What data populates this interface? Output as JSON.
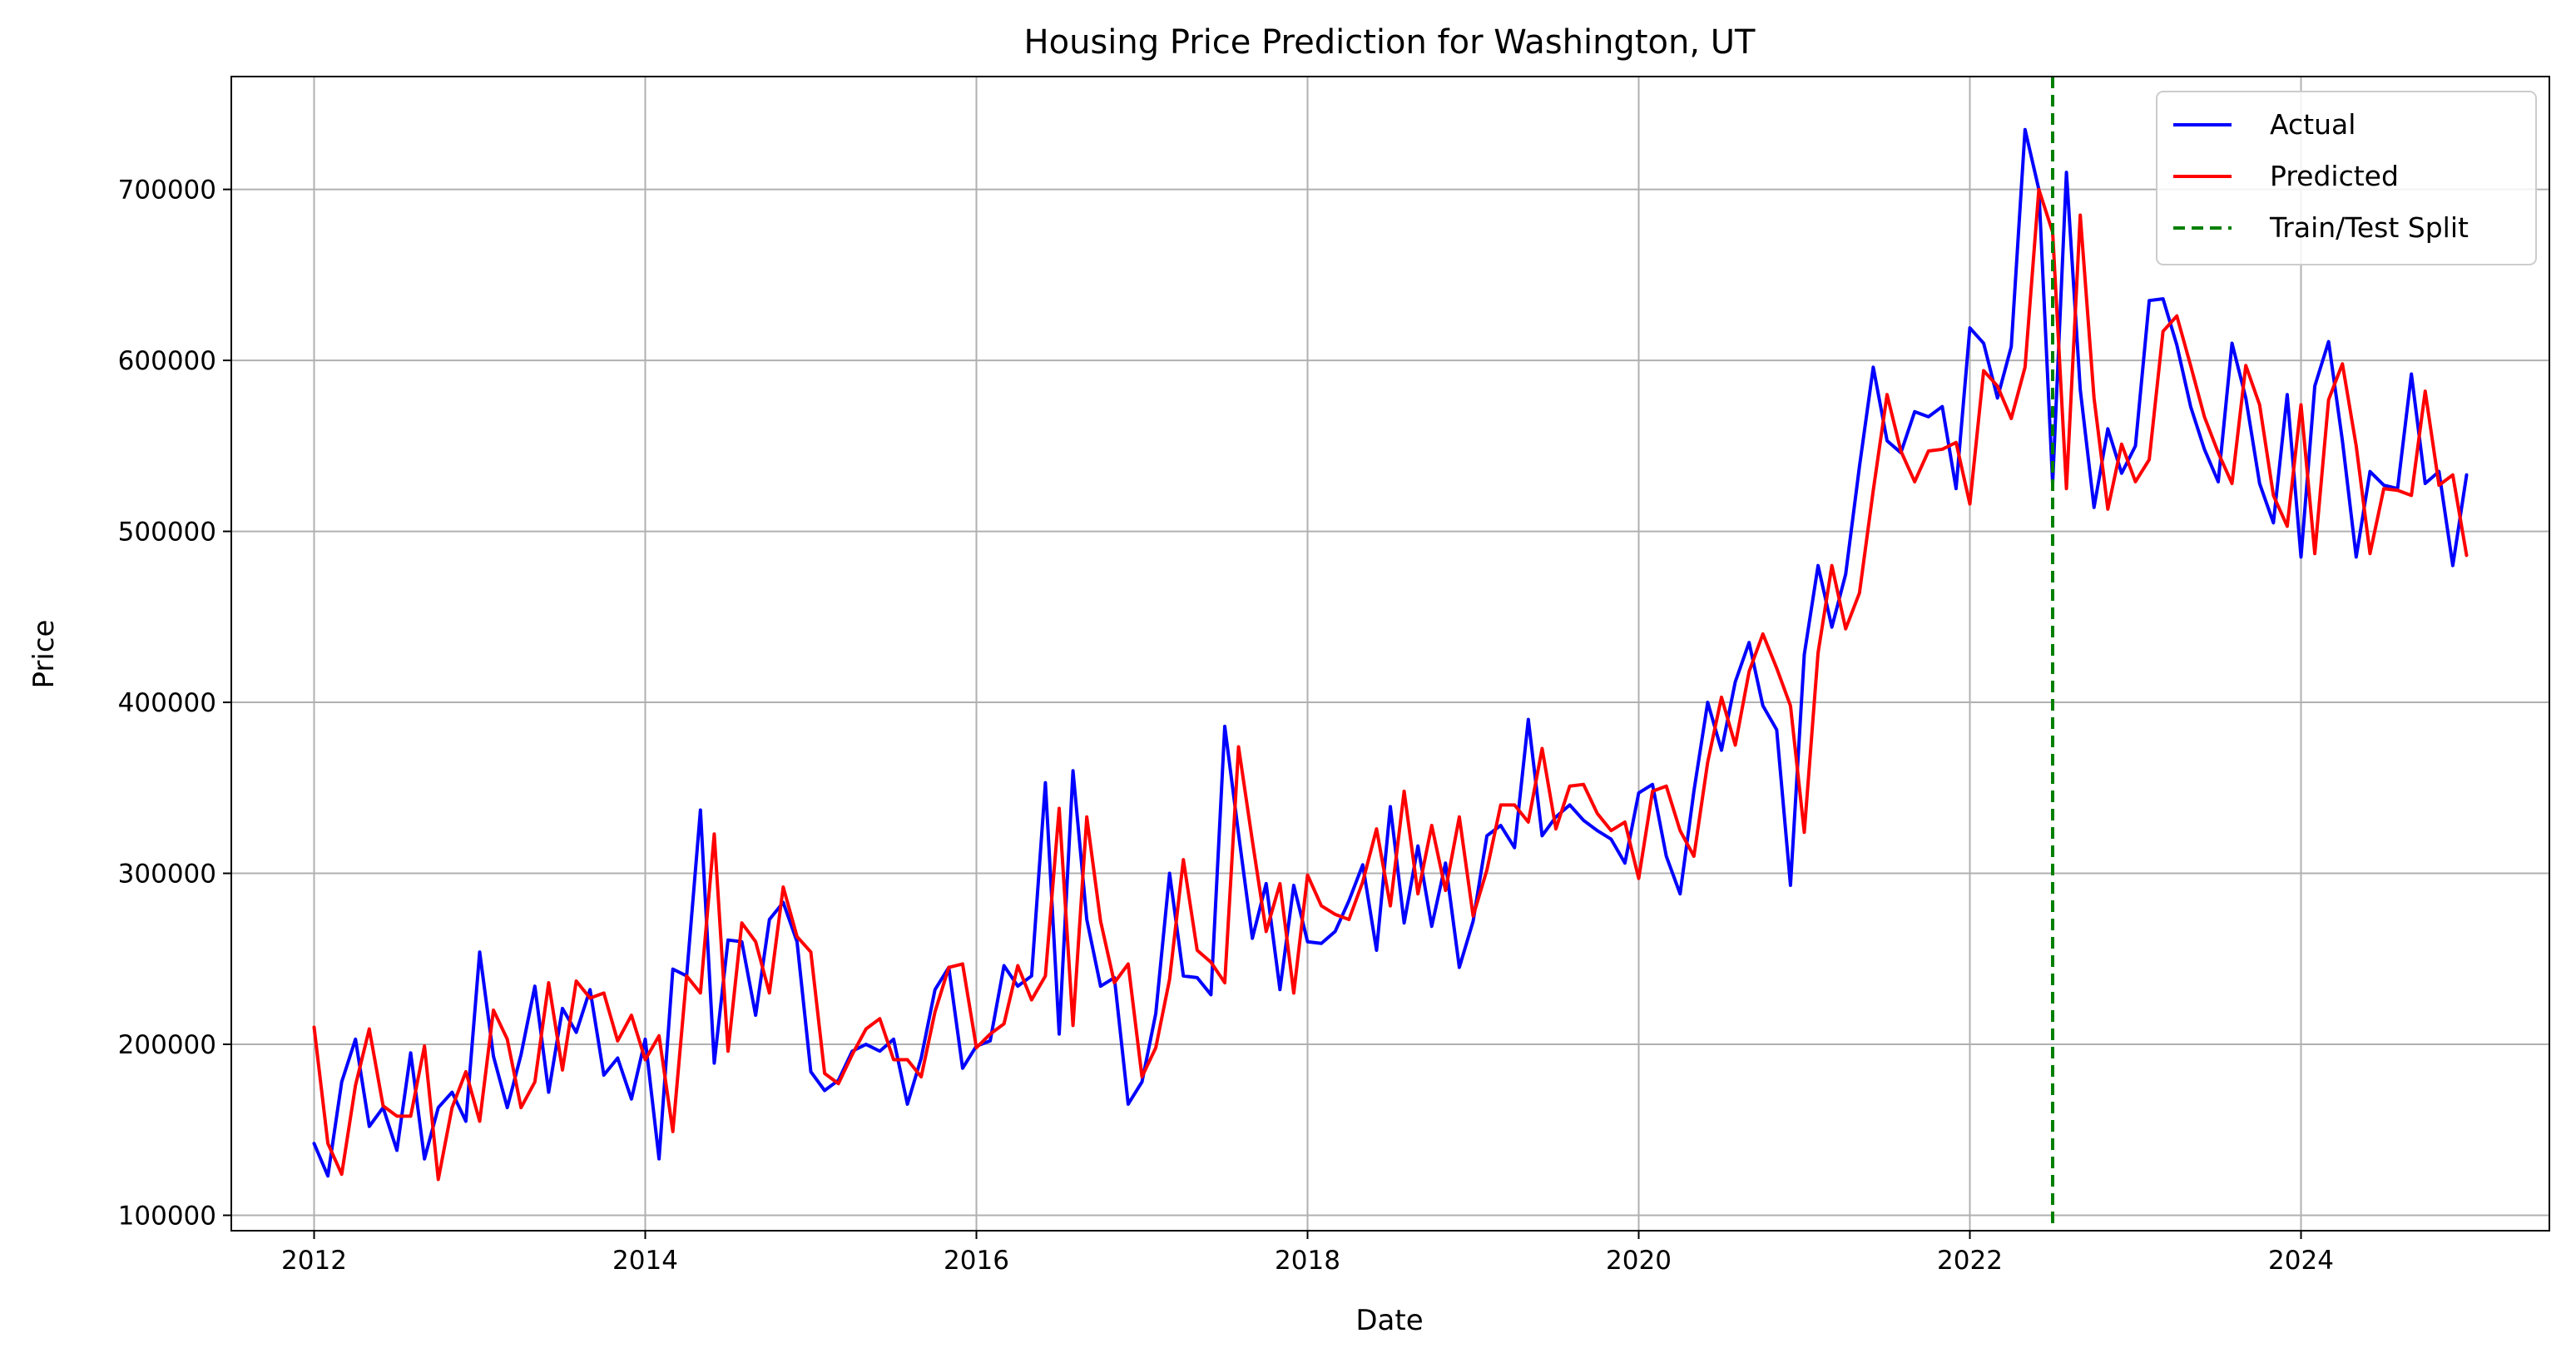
{
  "chart_data": {
    "type": "line",
    "title": "Housing Price Prediction for Washington, UT",
    "xlabel": "Date",
    "ylabel": "Price",
    "x_ticks": [
      "2012",
      "2014",
      "2016",
      "2018",
      "2020",
      "2022",
      "2024"
    ],
    "y_ticks": [
      "100000",
      "200000",
      "300000",
      "400000",
      "500000",
      "600000",
      "700000"
    ],
    "xlim": [
      "2011-07",
      "2025-07"
    ],
    "ylim": [
      91000,
      766000
    ],
    "grid": true,
    "legend_position": "top-right",
    "x": [
      "2012-01",
      "2012-02",
      "2012-03",
      "2012-04",
      "2012-05",
      "2012-06",
      "2012-07",
      "2012-08",
      "2012-09",
      "2012-10",
      "2012-11",
      "2012-12",
      "2013-01",
      "2013-02",
      "2013-03",
      "2013-04",
      "2013-05",
      "2013-06",
      "2013-07",
      "2013-08",
      "2013-09",
      "2013-10",
      "2013-11",
      "2013-12",
      "2014-01",
      "2014-02",
      "2014-03",
      "2014-04",
      "2014-05",
      "2014-06",
      "2014-07",
      "2014-08",
      "2014-09",
      "2014-10",
      "2014-11",
      "2014-12",
      "2015-01",
      "2015-02",
      "2015-03",
      "2015-04",
      "2015-05",
      "2015-06",
      "2015-07",
      "2015-08",
      "2015-09",
      "2015-10",
      "2015-11",
      "2015-12",
      "2016-01",
      "2016-02",
      "2016-03",
      "2016-04",
      "2016-05",
      "2016-06",
      "2016-07",
      "2016-08",
      "2016-09",
      "2016-10",
      "2016-11",
      "2016-12",
      "2017-01",
      "2017-02",
      "2017-03",
      "2017-04",
      "2017-05",
      "2017-06",
      "2017-07",
      "2017-08",
      "2017-09",
      "2017-10",
      "2017-11",
      "2017-12",
      "2018-01",
      "2018-02",
      "2018-03",
      "2018-04",
      "2018-05",
      "2018-06",
      "2018-07",
      "2018-08",
      "2018-09",
      "2018-10",
      "2018-11",
      "2018-12",
      "2019-01",
      "2019-02",
      "2019-03",
      "2019-04",
      "2019-05",
      "2019-06",
      "2019-07",
      "2019-08",
      "2019-09",
      "2019-10",
      "2019-11",
      "2019-12",
      "2020-01",
      "2020-02",
      "2020-03",
      "2020-04",
      "2020-05",
      "2020-06",
      "2020-07",
      "2020-08",
      "2020-09",
      "2020-10",
      "2020-11",
      "2020-12",
      "2021-01",
      "2021-02",
      "2021-03",
      "2021-04",
      "2021-05",
      "2021-06",
      "2021-07",
      "2021-08",
      "2021-09",
      "2021-10",
      "2021-11",
      "2021-12",
      "2022-01",
      "2022-02",
      "2022-03",
      "2022-04",
      "2022-05",
      "2022-06",
      "2022-07",
      "2022-08",
      "2022-09",
      "2022-10",
      "2022-11",
      "2022-12",
      "2023-01",
      "2023-02",
      "2023-03",
      "2023-04",
      "2023-05",
      "2023-06",
      "2023-07",
      "2023-08",
      "2023-09",
      "2023-10",
      "2023-11",
      "2023-12",
      "2024-01",
      "2024-02",
      "2024-03",
      "2024-04",
      "2024-05",
      "2024-06",
      "2024-07",
      "2024-08",
      "2024-09",
      "2024-10",
      "2024-11",
      "2024-12",
      "2025-01"
    ],
    "series": [
      {
        "name": "Actual",
        "color": "#0000ff",
        "values": [
          142000,
          123000,
          178000,
          203000,
          152000,
          163000,
          138000,
          195000,
          133000,
          163000,
          172000,
          155000,
          254000,
          193000,
          163000,
          194000,
          234000,
          172000,
          221000,
          207000,
          232000,
          182000,
          192000,
          168000,
          203000,
          133000,
          244000,
          240000,
          337000,
          189000,
          261000,
          260000,
          217000,
          273000,
          283000,
          260000,
          184000,
          173000,
          179000,
          196000,
          200000,
          196000,
          203000,
          165000,
          192000,
          232000,
          245000,
          186000,
          199000,
          202000,
          246000,
          234000,
          240000,
          353000,
          206000,
          360000,
          273000,
          234000,
          239000,
          165000,
          178000,
          218000,
          300000,
          240000,
          239000,
          229000,
          386000,
          323000,
          262000,
          294000,
          232000,
          293000,
          260000,
          259000,
          266000,
          284000,
          305000,
          255000,
          339000,
          271000,
          316000,
          269000,
          306000,
          245000,
          272000,
          322000,
          328000,
          315000,
          390000,
          322000,
          333000,
          340000,
          331000,
          325000,
          320000,
          306000,
          347000,
          352000,
          310000,
          288000,
          348000,
          400000,
          372000,
          412000,
          435000,
          398000,
          384000,
          293000,
          428000,
          480000,
          444000,
          475000,
          538000,
          596000,
          553000,
          546000,
          570000,
          567000,
          573000,
          525000,
          619000,
          610000,
          578000,
          608000,
          735000,
          700000,
          528000,
          710000,
          583000,
          514000,
          560000,
          534000,
          550000,
          635000,
          636000,
          609000,
          573000,
          548000,
          529000,
          610000,
          578000,
          528000,
          505000,
          580000,
          485000,
          585000,
          611000,
          553000,
          485000,
          535000,
          527000,
          525000,
          592000,
          528000,
          535000,
          480000,
          533000
        ]
      },
      {
        "name": "Predicted",
        "color": "#ff0000",
        "values": [
          210000,
          142000,
          124000,
          176000,
          209000,
          164000,
          158000,
          158000,
          199000,
          121000,
          163000,
          184000,
          155000,
          220000,
          203000,
          163000,
          178000,
          236000,
          185000,
          237000,
          227000,
          230000,
          202000,
          217000,
          191000,
          205000,
          149000,
          240000,
          230000,
          323000,
          196000,
          271000,
          260000,
          230000,
          292000,
          263000,
          254000,
          183000,
          177000,
          194000,
          209000,
          215000,
          191000,
          191000,
          181000,
          219000,
          245000,
          247000,
          198000,
          206000,
          212000,
          246000,
          226000,
          240000,
          338000,
          211000,
          333000,
          272000,
          236000,
          247000,
          181000,
          198000,
          238000,
          308000,
          255000,
          248000,
          236000,
          374000,
          319000,
          266000,
          294000,
          230000,
          299000,
          281000,
          276000,
          273000,
          295000,
          326000,
          281000,
          348000,
          288000,
          328000,
          290000,
          333000,
          275000,
          302000,
          340000,
          340000,
          330000,
          373000,
          326000,
          351000,
          352000,
          335000,
          325000,
          330000,
          297000,
          348000,
          351000,
          325000,
          310000,
          365000,
          403000,
          375000,
          418000,
          440000,
          420000,
          398000,
          324000,
          429000,
          480000,
          443000,
          464000,
          524000,
          580000,
          547000,
          529000,
          547000,
          548000,
          552000,
          516000,
          594000,
          585000,
          566000,
          596000,
          700000,
          675000,
          525000,
          685000,
          578000,
          513000,
          551000,
          529000,
          542000,
          617000,
          626000,
          597000,
          567000,
          546000,
          528000,
          597000,
          574000,
          521000,
          503000,
          574000,
          487000,
          577000,
          598000,
          550000,
          487000,
          525000,
          524000,
          521000,
          582000,
          527000,
          533000,
          486000
        ]
      }
    ],
    "split_line": {
      "name": "Train/Test Split",
      "x": "2022-07",
      "color": "#008000"
    },
    "legend": [
      "Actual",
      "Predicted",
      "Train/Test Split"
    ]
  }
}
